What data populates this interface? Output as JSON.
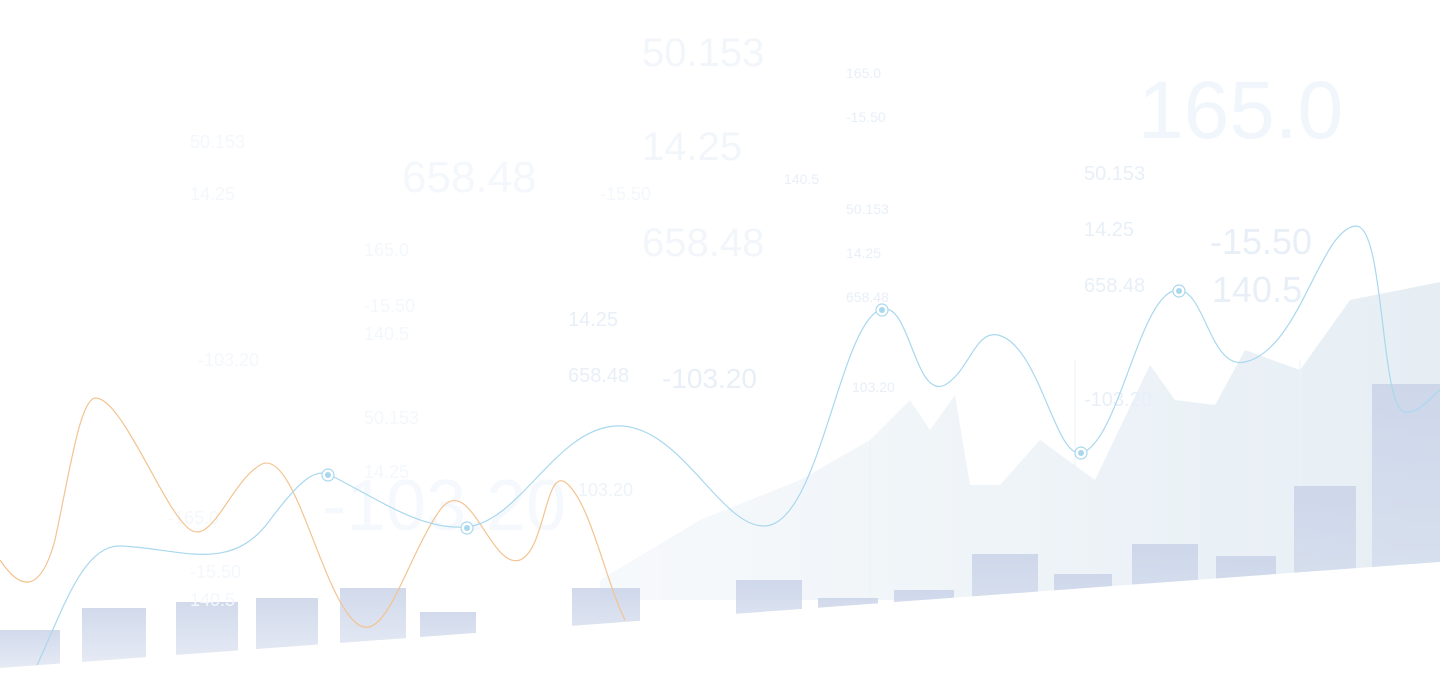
{
  "colors": {
    "background": "#ffffff",
    "blue_line": "#a9d8ee",
    "orange_line": "#f4c391",
    "bars": "#c9d3e8",
    "area": "#e3ecf3",
    "text_faint": "#e8eff7",
    "text_pale": "#dfe8f3"
  },
  "floating_numbers": {
    "n01": "50.153",
    "n02": "165.0",
    "n03": "-15.50",
    "n04": "165.0",
    "n05": "50.153",
    "n06": "14.25",
    "n07": "658.48",
    "n08": "14.25",
    "n09": "140.5",
    "n10": "-15.50",
    "n11": "50.153",
    "n12": "50.153",
    "n13": "14.25",
    "n14": "658.48",
    "n15": "165.0",
    "n16": "14.25",
    "n17": "-15.50",
    "n18": "-15.50",
    "n19": "140.5",
    "n20": "14.25",
    "n21": "658.48",
    "n22": "658.48",
    "n23": "140.5",
    "n24": "-103.20",
    "n25": "658.48",
    "n26": "-103.20",
    "n27": "103.20",
    "n28": "-103.20",
    "n29": "50.153",
    "n30": "-103.20",
    "n31": "103.20",
    "n32": "14.25",
    "n33": "-165.0",
    "n34": "-15.50",
    "n35": "140.5"
  }
}
